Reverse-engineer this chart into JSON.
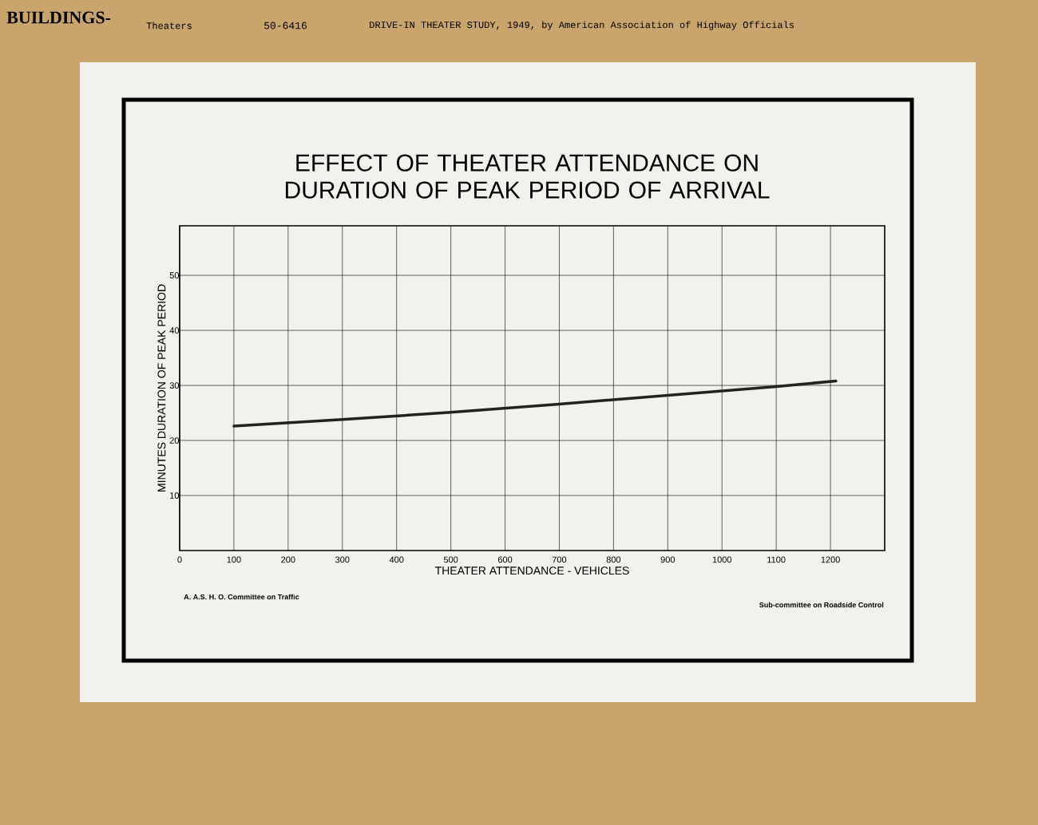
{
  "chart_data": {
    "type": "line",
    "title": "EFFECT OF THEATER ATTENDANCE ON DURATION OF PEAK PERIOD OF ARRIVAL",
    "xlabel": "THEATER ATTENDANCE - VEHICLES",
    "ylabel": "MINUTES DURATION OF PEAK PERIOD",
    "annotations": [
      "BUILDINGS-",
      "Theaters",
      "50-6416",
      "DRIVE-IN THEATER STUDY, 1949, by American Association of Highway Officials",
      "A. A.S. H. O.  Committee on Traffic",
      "Sub-committee on Roadside Control"
    ],
    "x": [
      100,
      300,
      500,
      700,
      900,
      1100,
      1210
    ],
    "series": [
      {
        "color": "#222222",
        "values": [
          22.6,
          23.8,
          25.1,
          26.6,
          28.2,
          29.8,
          30.8
        ]
      }
    ],
    "xlim": [
      0,
      1300
    ],
    "ylim": [
      0,
      59
    ],
    "xticks": [
      0,
      100,
      200,
      300,
      400,
      500,
      600,
      700,
      800,
      900,
      1000,
      1100,
      1200
    ],
    "yticks": [
      10,
      20,
      30,
      40,
      50
    ],
    "grid": true,
    "line_style": "solid"
  }
}
